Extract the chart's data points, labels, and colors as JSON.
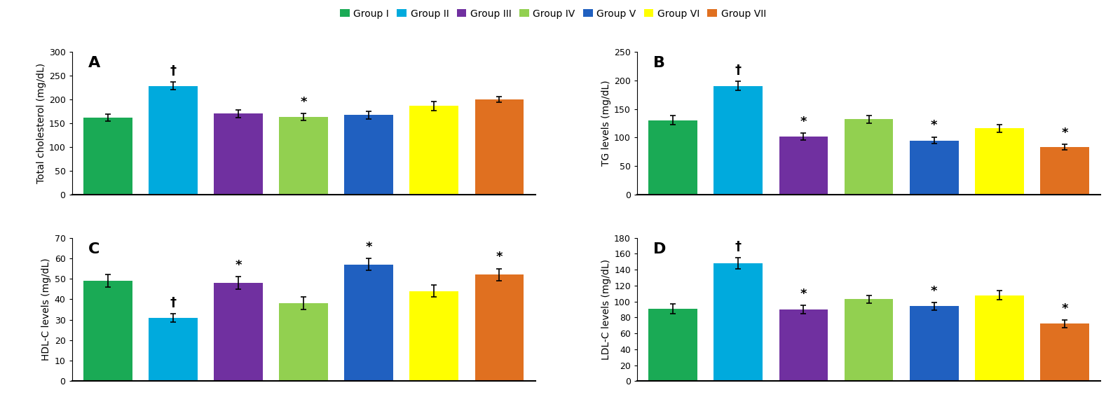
{
  "groups": [
    "Group I",
    "Group II",
    "Group III",
    "Group IV",
    "Group V",
    "Group VI",
    "Group VII"
  ],
  "colors": [
    "#1aaa55",
    "#00aadd",
    "#7030a0",
    "#92d050",
    "#2060c0",
    "#ffff00",
    "#e07020"
  ],
  "panel_A": {
    "label": "Total cholesterol (mg/dL)",
    "values": [
      162,
      228,
      170,
      163,
      167,
      186,
      200
    ],
    "errors": [
      7,
      8,
      8,
      7,
      8,
      9,
      6
    ],
    "ylim": [
      0,
      300
    ],
    "yticks": [
      0,
      50,
      100,
      150,
      200,
      250,
      300
    ],
    "annotations": [
      "",
      "†",
      "",
      "*",
      "",
      "",
      ""
    ],
    "panel_label": "A"
  },
  "panel_B": {
    "label": "TG levels (mg/dL)",
    "values": [
      130,
      190,
      102,
      132,
      95,
      116,
      83
    ],
    "errors": [
      8,
      8,
      6,
      7,
      6,
      7,
      5
    ],
    "ylim": [
      0,
      250
    ],
    "yticks": [
      0,
      50,
      100,
      150,
      200,
      250
    ],
    "annotations": [
      "",
      "†",
      "*",
      "",
      "*",
      "",
      "*"
    ],
    "panel_label": "B"
  },
  "panel_C": {
    "label": "HDL-C levels (mg/dL)",
    "values": [
      49,
      31,
      48,
      38,
      57,
      44,
      52
    ],
    "errors": [
      3,
      2,
      3,
      3,
      3,
      3,
      3
    ],
    "ylim": [
      0,
      70
    ],
    "yticks": [
      0,
      10,
      20,
      30,
      40,
      50,
      60,
      70
    ],
    "annotations": [
      "",
      "†",
      "*",
      "",
      "*",
      "",
      "*"
    ],
    "panel_label": "C"
  },
  "panel_D": {
    "label": "LDL-C levels (mg/dL)",
    "values": [
      91,
      148,
      90,
      103,
      94,
      108,
      72
    ],
    "errors": [
      6,
      7,
      5,
      5,
      5,
      6,
      5
    ],
    "ylim": [
      0,
      180
    ],
    "yticks": [
      0,
      20,
      40,
      60,
      80,
      100,
      120,
      140,
      160,
      180
    ],
    "annotations": [
      "",
      "†",
      "*",
      "",
      "*",
      "",
      "*"
    ],
    "panel_label": "D"
  },
  "legend_fontsize": 10,
  "axis_label_fontsize": 10,
  "tick_fontsize": 9,
  "annotation_fontsize": 13,
  "panel_label_fontsize": 16,
  "bar_width": 0.75,
  "background_color": "#ffffff"
}
